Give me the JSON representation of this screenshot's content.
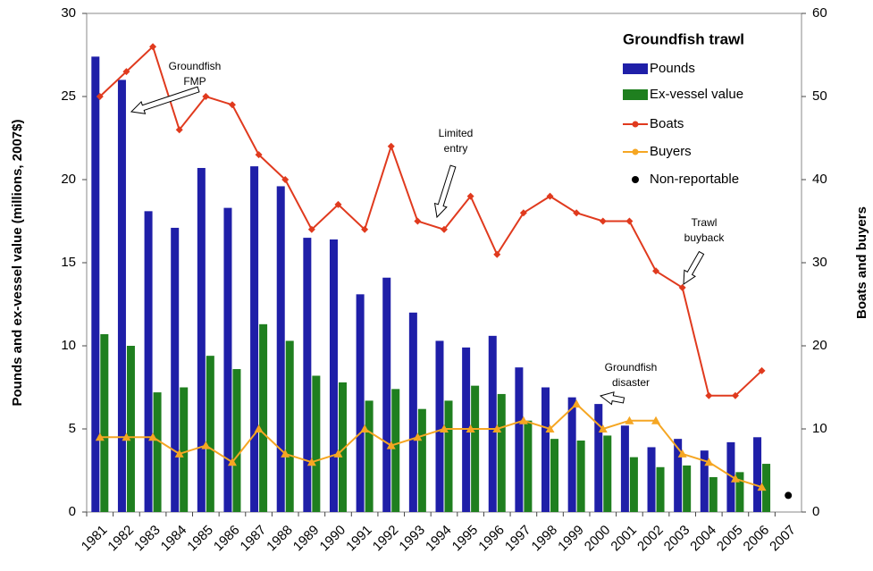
{
  "chart_data": {
    "type": "bar-line",
    "title": "Groundfish trawl",
    "y_label": "Pounds and ex-vessel value (millions, 2007$)",
    "y2_label": "Boats and buyers",
    "categories": [
      "1981",
      "1982",
      "1983",
      "1984",
      "1985",
      "1986",
      "1987",
      "1988",
      "1989",
      "1990",
      "1991",
      "1992",
      "1993",
      "1994",
      "1995",
      "1996",
      "1997",
      "1998",
      "1999",
      "2000",
      "2001",
      "2002",
      "2003",
      "2004",
      "2005",
      "2006",
      "2007"
    ],
    "ylim": [
      0,
      30
    ],
    "yticks": [
      0,
      5,
      10,
      15,
      20,
      25,
      30
    ],
    "y2lim": [
      0,
      60
    ],
    "y2ticks": [
      0,
      10,
      20,
      30,
      40,
      50,
      60
    ],
    "series": [
      {
        "name": "Pounds",
        "kind": "bar",
        "color": "#1f1fa8",
        "values": [
          27.4,
          26.0,
          18.1,
          17.1,
          20.7,
          18.3,
          20.8,
          19.6,
          16.5,
          16.4,
          13.1,
          14.1,
          12.0,
          10.3,
          9.9,
          10.6,
          8.7,
          7.5,
          6.9,
          6.5,
          5.2,
          3.9,
          4.4,
          3.7,
          4.2,
          4.5,
          null
        ]
      },
      {
        "name": "Ex-vessel value",
        "kind": "bar",
        "color": "#1f7f1f",
        "values": [
          10.7,
          10.0,
          7.2,
          7.5,
          9.4,
          8.6,
          11.3,
          10.3,
          8.2,
          7.8,
          6.7,
          7.4,
          6.2,
          6.7,
          7.6,
          7.1,
          5.5,
          4.4,
          4.3,
          4.6,
          3.3,
          2.7,
          2.8,
          2.1,
          2.4,
          2.9,
          null
        ]
      },
      {
        "name": "Boats",
        "kind": "line",
        "marker": "diamond",
        "axis": "y2",
        "color": "#e03a1e",
        "values": [
          50,
          53,
          56,
          46,
          50,
          49,
          43,
          40,
          34,
          37,
          34,
          44,
          35,
          34,
          38,
          31,
          36,
          38,
          36,
          35,
          35,
          29,
          27,
          14,
          14,
          17,
          null
        ]
      },
      {
        "name": "Buyers",
        "kind": "line",
        "marker": "triangle",
        "axis": "y2",
        "color": "#f5a623",
        "values": [
          9,
          9,
          9,
          7,
          8,
          6,
          10,
          7,
          6,
          7,
          10,
          8,
          9,
          10,
          10,
          10,
          11,
          10,
          13,
          10,
          11,
          11,
          7,
          6,
          4,
          3,
          null
        ]
      },
      {
        "name": "Non-reportable",
        "kind": "dot",
        "axis": "y2",
        "color": "#000000",
        "values": [
          null,
          null,
          null,
          null,
          null,
          null,
          null,
          null,
          null,
          null,
          null,
          null,
          null,
          null,
          null,
          null,
          null,
          null,
          null,
          null,
          null,
          null,
          null,
          null,
          null,
          null,
          2
        ]
      }
    ],
    "annotations": [
      {
        "lines": [
          "Groundfish",
          "FMP"
        ]
      },
      {
        "lines": [
          "Limited",
          "entry"
        ]
      },
      {
        "lines": [
          "Groundfish",
          "disaster"
        ]
      },
      {
        "lines": [
          "Trawl",
          "buyback"
        ]
      }
    ]
  }
}
